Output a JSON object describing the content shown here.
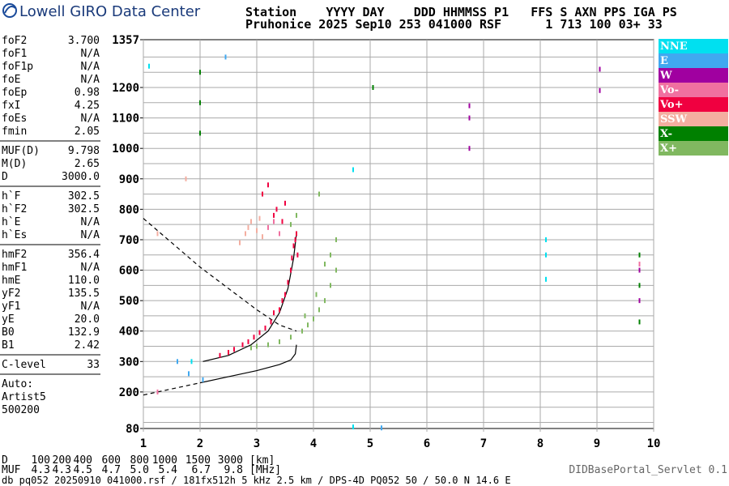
{
  "header": {
    "logo": "Lowell GIRO Data Center",
    "line1": "Station    YYYY DAY    DDD HHMMSS P1   FFS S AXN PPS IGA PS",
    "line2": "Pruhonice 2025 Sep10 253 041000 RSF      1 713 100 03+ 33"
  },
  "params": [
    [
      [
        "foF2",
        "3.700"
      ],
      [
        "foF1",
        "N/A"
      ],
      [
        "foF1p",
        "N/A"
      ],
      [
        "foE",
        "N/A"
      ],
      [
        "foEp",
        "0.98"
      ],
      [
        "fxI",
        "4.25"
      ],
      [
        "foEs",
        "N/A"
      ],
      [
        "fmin",
        "2.05"
      ]
    ],
    [
      [
        "MUF(D)",
        "9.798"
      ],
      [
        "M(D)",
        "2.65"
      ],
      [
        "D",
        "3000.0"
      ]
    ],
    [
      [
        "h`F",
        "302.5"
      ],
      [
        "h`F2",
        "302.5"
      ],
      [
        "h`E",
        "N/A"
      ],
      [
        "h`Es",
        "N/A"
      ]
    ],
    [
      [
        "hmF2",
        "356.4"
      ],
      [
        "hmF1",
        "N/A"
      ],
      [
        "hmE",
        "110.0"
      ],
      [
        "yF2",
        "135.5"
      ],
      [
        "yF1",
        "N/A"
      ],
      [
        "yE",
        "20.0"
      ],
      [
        "B0",
        "132.9"
      ],
      [
        "B1",
        "2.42"
      ]
    ],
    [
      [
        "C-level",
        "33"
      ]
    ]
  ],
  "auto": [
    "Auto:",
    "Artist5",
    "500200"
  ],
  "muf_table": {
    "d_label": "D",
    "d": [
      "100",
      "200",
      "400",
      "600",
      "800",
      "1000",
      "1500",
      "3000"
    ],
    "d_unit": "[km]",
    "muf_label": "MUF",
    "muf": [
      "4.3",
      "4.3",
      "4.5",
      "4.7",
      "5.0",
      "5.4",
      "6.7",
      "9.8"
    ],
    "muf_unit": "[MHz]"
  },
  "footer": "db pq052 20250910 041000.rsf / 181fx512h 5 kHz 2.5 km / DPS-4D PQ052 50 / 50.0 N 14.6 E",
  "servlet": "DIDBasePortal_Servlet 0.1",
  "chart_data": {
    "type": "scatter",
    "xlim": [
      1,
      10
    ],
    "xticks": [
      1,
      2,
      3,
      4,
      5,
      6,
      7,
      8,
      9,
      10
    ],
    "ylim": [
      80,
      1357
    ],
    "yticks": [
      80,
      200,
      300,
      400,
      500,
      600,
      700,
      800,
      900,
      1000,
      1100,
      1200,
      1357
    ],
    "ygrid": [
      100,
      150,
      200,
      250,
      300,
      350,
      400,
      450,
      500,
      550,
      600,
      650,
      700,
      750,
      800,
      850,
      900,
      950,
      1000,
      1050,
      1100,
      1150,
      1200,
      1250,
      1300
    ],
    "series": [
      {
        "name": "NNE",
        "color": "#00e0f0",
        "x": [
          8.1,
          8.1,
          8.1,
          4.7,
          4.7,
          1.1,
          1.85
        ],
        "y": [
          700,
          650,
          570,
          930,
          85,
          1270,
          300
        ]
      },
      {
        "name": "E",
        "color": "#40a8f0",
        "x": [
          1.8,
          1.6,
          2.05,
          5.2,
          2.45
        ],
        "y": [
          260,
          300,
          240,
          82,
          1300
        ]
      },
      {
        "name": "W",
        "color": "#a000a0",
        "x": [
          6.75,
          6.75,
          6.75,
          9.05,
          9.05,
          9.75,
          9.75
        ],
        "y": [
          1140,
          1100,
          1000,
          1260,
          1190,
          600,
          500
        ]
      },
      {
        "name": "Vo-",
        "color": "#f070a0",
        "x": [
          3.2,
          3.3,
          3.4,
          9.75,
          1.25
        ],
        "y": [
          740,
          760,
          720,
          620,
          200
        ]
      },
      {
        "name": "Vo+",
        "color": "#f00040",
        "x": [
          2.35,
          2.5,
          2.6,
          2.75,
          2.85,
          2.95,
          3.05,
          3.15,
          3.25,
          3.3,
          3.4,
          3.45,
          3.5,
          3.55,
          3.6,
          3.62,
          3.65,
          3.68,
          3.7,
          3.72,
          3.1,
          3.2,
          3.35,
          3.5,
          3.3,
          3.45
        ],
        "y": [
          320,
          330,
          340,
          355,
          365,
          380,
          395,
          410,
          430,
          460,
          470,
          500,
          520,
          560,
          600,
          640,
          680,
          700,
          720,
          650,
          850,
          880,
          800,
          820,
          780,
          760
        ]
      },
      {
        "name": "SSW",
        "color": "#f4aea0",
        "x": [
          2.7,
          2.8,
          2.85,
          2.9,
          3.0,
          3.05,
          3.1,
          1.75,
          1.25
        ],
        "y": [
          690,
          720,
          740,
          760,
          730,
          770,
          710,
          900,
          720
        ]
      },
      {
        "name": "X-",
        "color": "#008000",
        "x": [
          2.0,
          2.0,
          2.0,
          9.75,
          9.75,
          9.75,
          5.05
        ],
        "y": [
          1250,
          1150,
          1050,
          650,
          550,
          430,
          1200
        ]
      },
      {
        "name": "X+",
        "color": "#80b860",
        "x": [
          2.9,
          3.0,
          3.2,
          3.4,
          3.6,
          3.8,
          3.9,
          4.0,
          4.1,
          4.2,
          4.3,
          4.4,
          4.3,
          4.2,
          4.05,
          3.85,
          4.4,
          3.6,
          3.7,
          4.1
        ],
        "y": [
          345,
          350,
          355,
          365,
          380,
          400,
          420,
          440,
          470,
          500,
          550,
          600,
          650,
          620,
          520,
          450,
          700,
          750,
          780,
          850
        ]
      }
    ],
    "lines": [
      {
        "dash": false,
        "x": [
          2.05,
          2.5,
          2.9,
          3.2,
          3.4,
          3.55,
          3.65,
          3.7
        ],
        "y": [
          300,
          320,
          355,
          400,
          460,
          540,
          640,
          720
        ]
      },
      {
        "dash": false,
        "x": [
          2.0,
          2.5,
          3.0,
          3.4,
          3.6,
          3.68,
          3.7
        ],
        "y": [
          230,
          250,
          270,
          290,
          305,
          325,
          355
        ]
      },
      {
        "dash": true,
        "x": [
          1.0,
          1.5,
          2.0
        ],
        "y": [
          190,
          210,
          230
        ]
      },
      {
        "dash": true,
        "x": [
          1.0,
          1.5,
          2.0,
          2.5,
          3.0,
          3.4,
          3.7
        ],
        "y": [
          770,
          690,
          610,
          540,
          470,
          420,
          400
        ]
      }
    ]
  }
}
